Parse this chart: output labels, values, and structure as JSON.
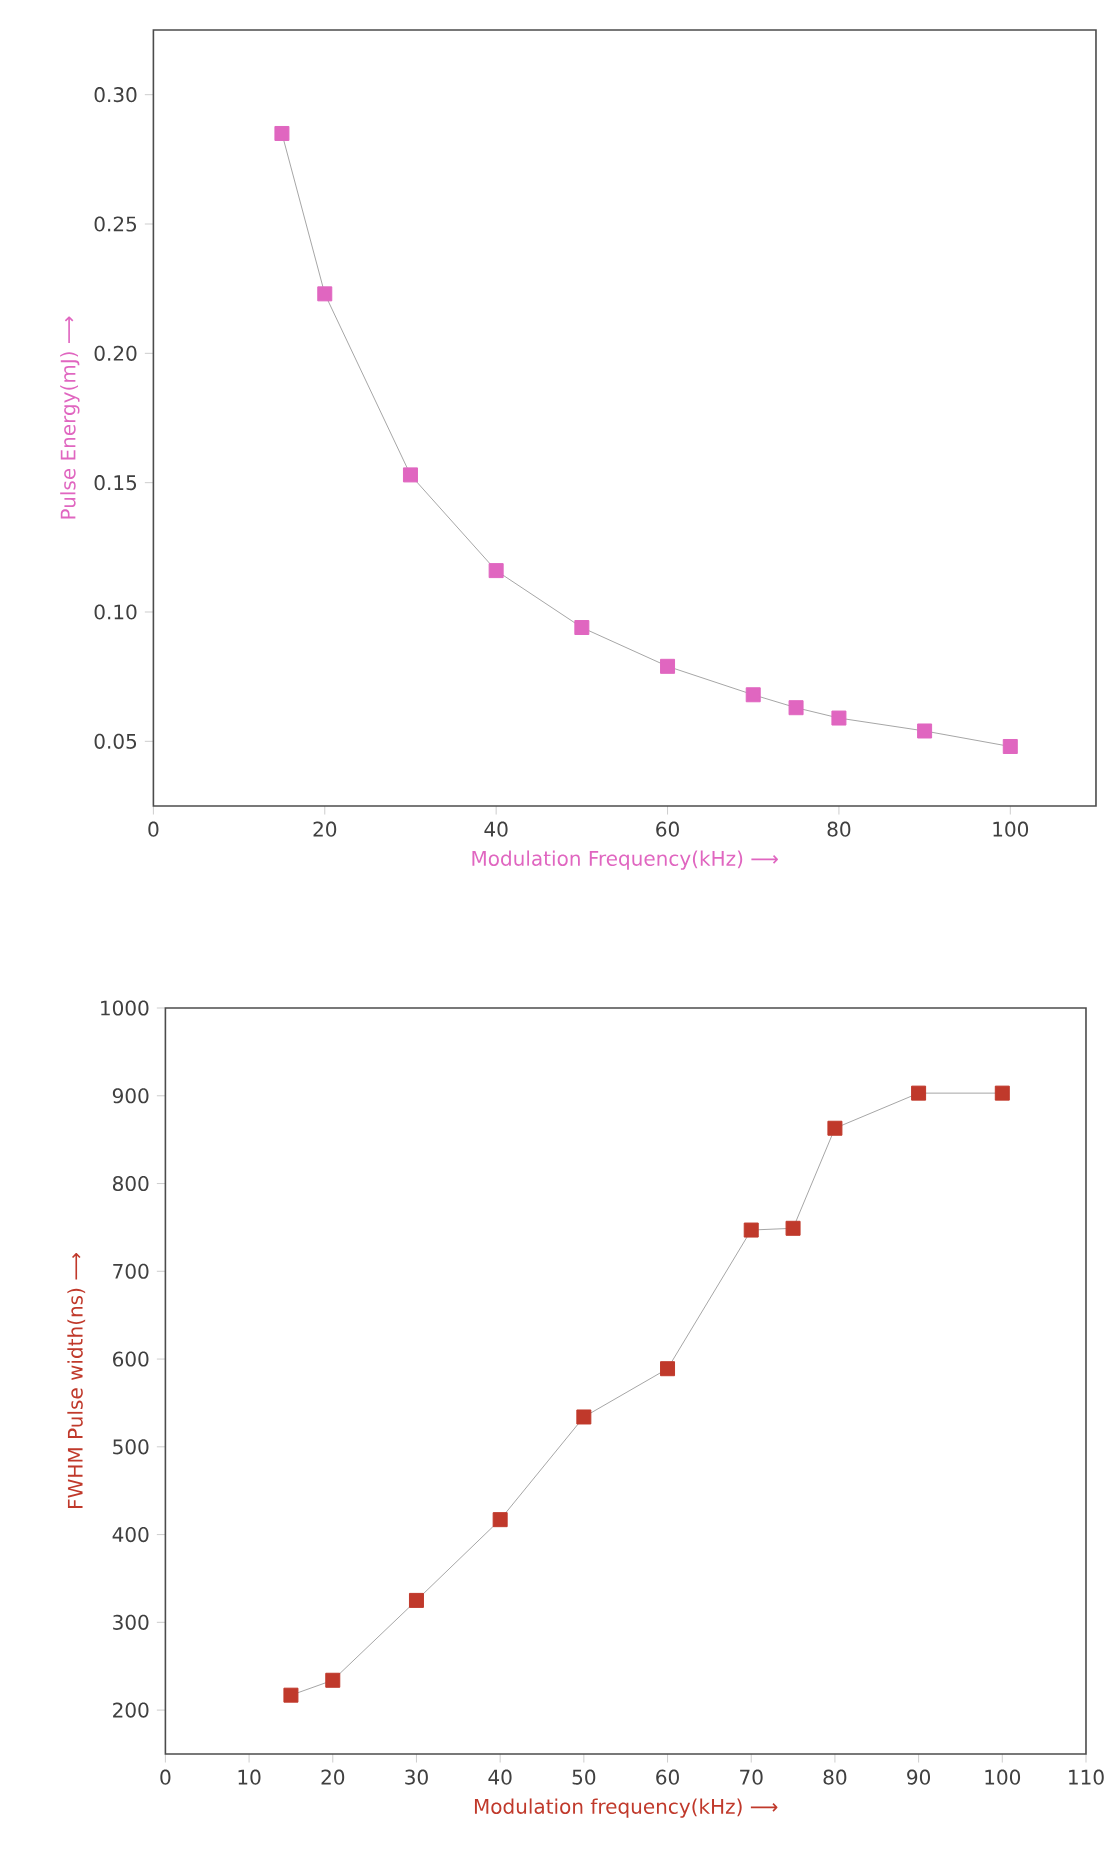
{
  "chart_data": [
    {
      "type": "line",
      "xlabel": "Modulation Frequency(kHz) ⟶",
      "ylabel": "Pulse Energy(mJ) ⟶",
      "x": [
        15,
        20,
        30,
        40,
        50,
        60,
        70,
        75,
        80,
        90,
        100
      ],
      "series": [
        {
          "color": "#e066c0",
          "values": [
            0.285,
            0.223,
            0.153,
            0.116,
            0.094,
            0.079,
            0.068,
            0.063,
            0.059,
            0.054,
            0.048
          ]
        }
      ],
      "xlim": [
        0,
        110
      ],
      "ylim": [
        0.025,
        0.325
      ],
      "xticks": [
        0,
        20,
        40,
        60,
        80,
        100
      ],
      "yticks": [
        0.05,
        {
          "value": 0.1,
          "label": "0.10"
        },
        0.15,
        {
          "value": 0.2,
          "label": "0.20"
        },
        0.25,
        {
          "value": 0.3,
          "label": "0.30"
        }
      ],
      "marker": "square",
      "line_style": "solid",
      "grid": false
    },
    {
      "type": "line",
      "xlabel": "Modulation frequency(kHz) ⟶",
      "ylabel": "FWHM Pulse width(ns) ⟶",
      "x": [
        15,
        20,
        30,
        40,
        50,
        60,
        70,
        75,
        80,
        90,
        100
      ],
      "series": [
        {
          "color": "#c0392b",
          "values": [
            217,
            234,
            325,
            417,
            534,
            589,
            747,
            749,
            863,
            903,
            903
          ]
        }
      ],
      "xlim": [
        0,
        110
      ],
      "ylim": [
        150,
        1000
      ],
      "xticks": [
        0,
        10,
        20,
        30,
        40,
        50,
        60,
        70,
        80,
        90,
        100,
        110
      ],
      "yticks": [
        200,
        300,
        400,
        500,
        600,
        700,
        800,
        900,
        1000
      ],
      "marker": "square",
      "line_style": "solid",
      "grid": false
    }
  ]
}
